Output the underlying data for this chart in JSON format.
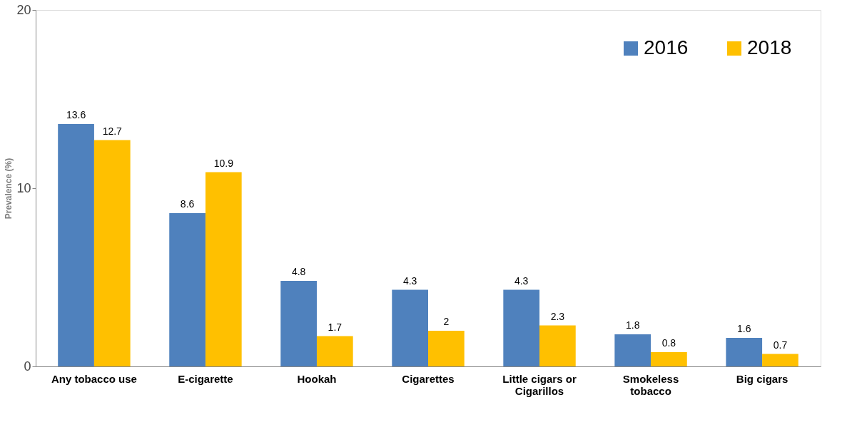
{
  "chart_data": {
    "type": "bar",
    "categories": [
      "Any tobacco use",
      "E-cigarette",
      "Hookah",
      "Cigarettes",
      "Little cigars or\nCigarillos",
      "Smokeless\ntobacco",
      "Big cigars"
    ],
    "series": [
      {
        "name": "2016",
        "color": "#4f81bd",
        "values": [
          13.6,
          8.6,
          4.8,
          4.3,
          4.3,
          1.8,
          1.6
        ]
      },
      {
        "name": "2018",
        "color": "#ffc000",
        "values": [
          12.7,
          10.9,
          1.7,
          2,
          2.3,
          0.8,
          0.7
        ]
      }
    ],
    "ylabel": "Prevalence (%)",
    "ylim": [
      0,
      20
    ],
    "yticks": [
      0,
      10,
      20
    ],
    "data_labels": true,
    "grid": false,
    "legend": "top right"
  }
}
